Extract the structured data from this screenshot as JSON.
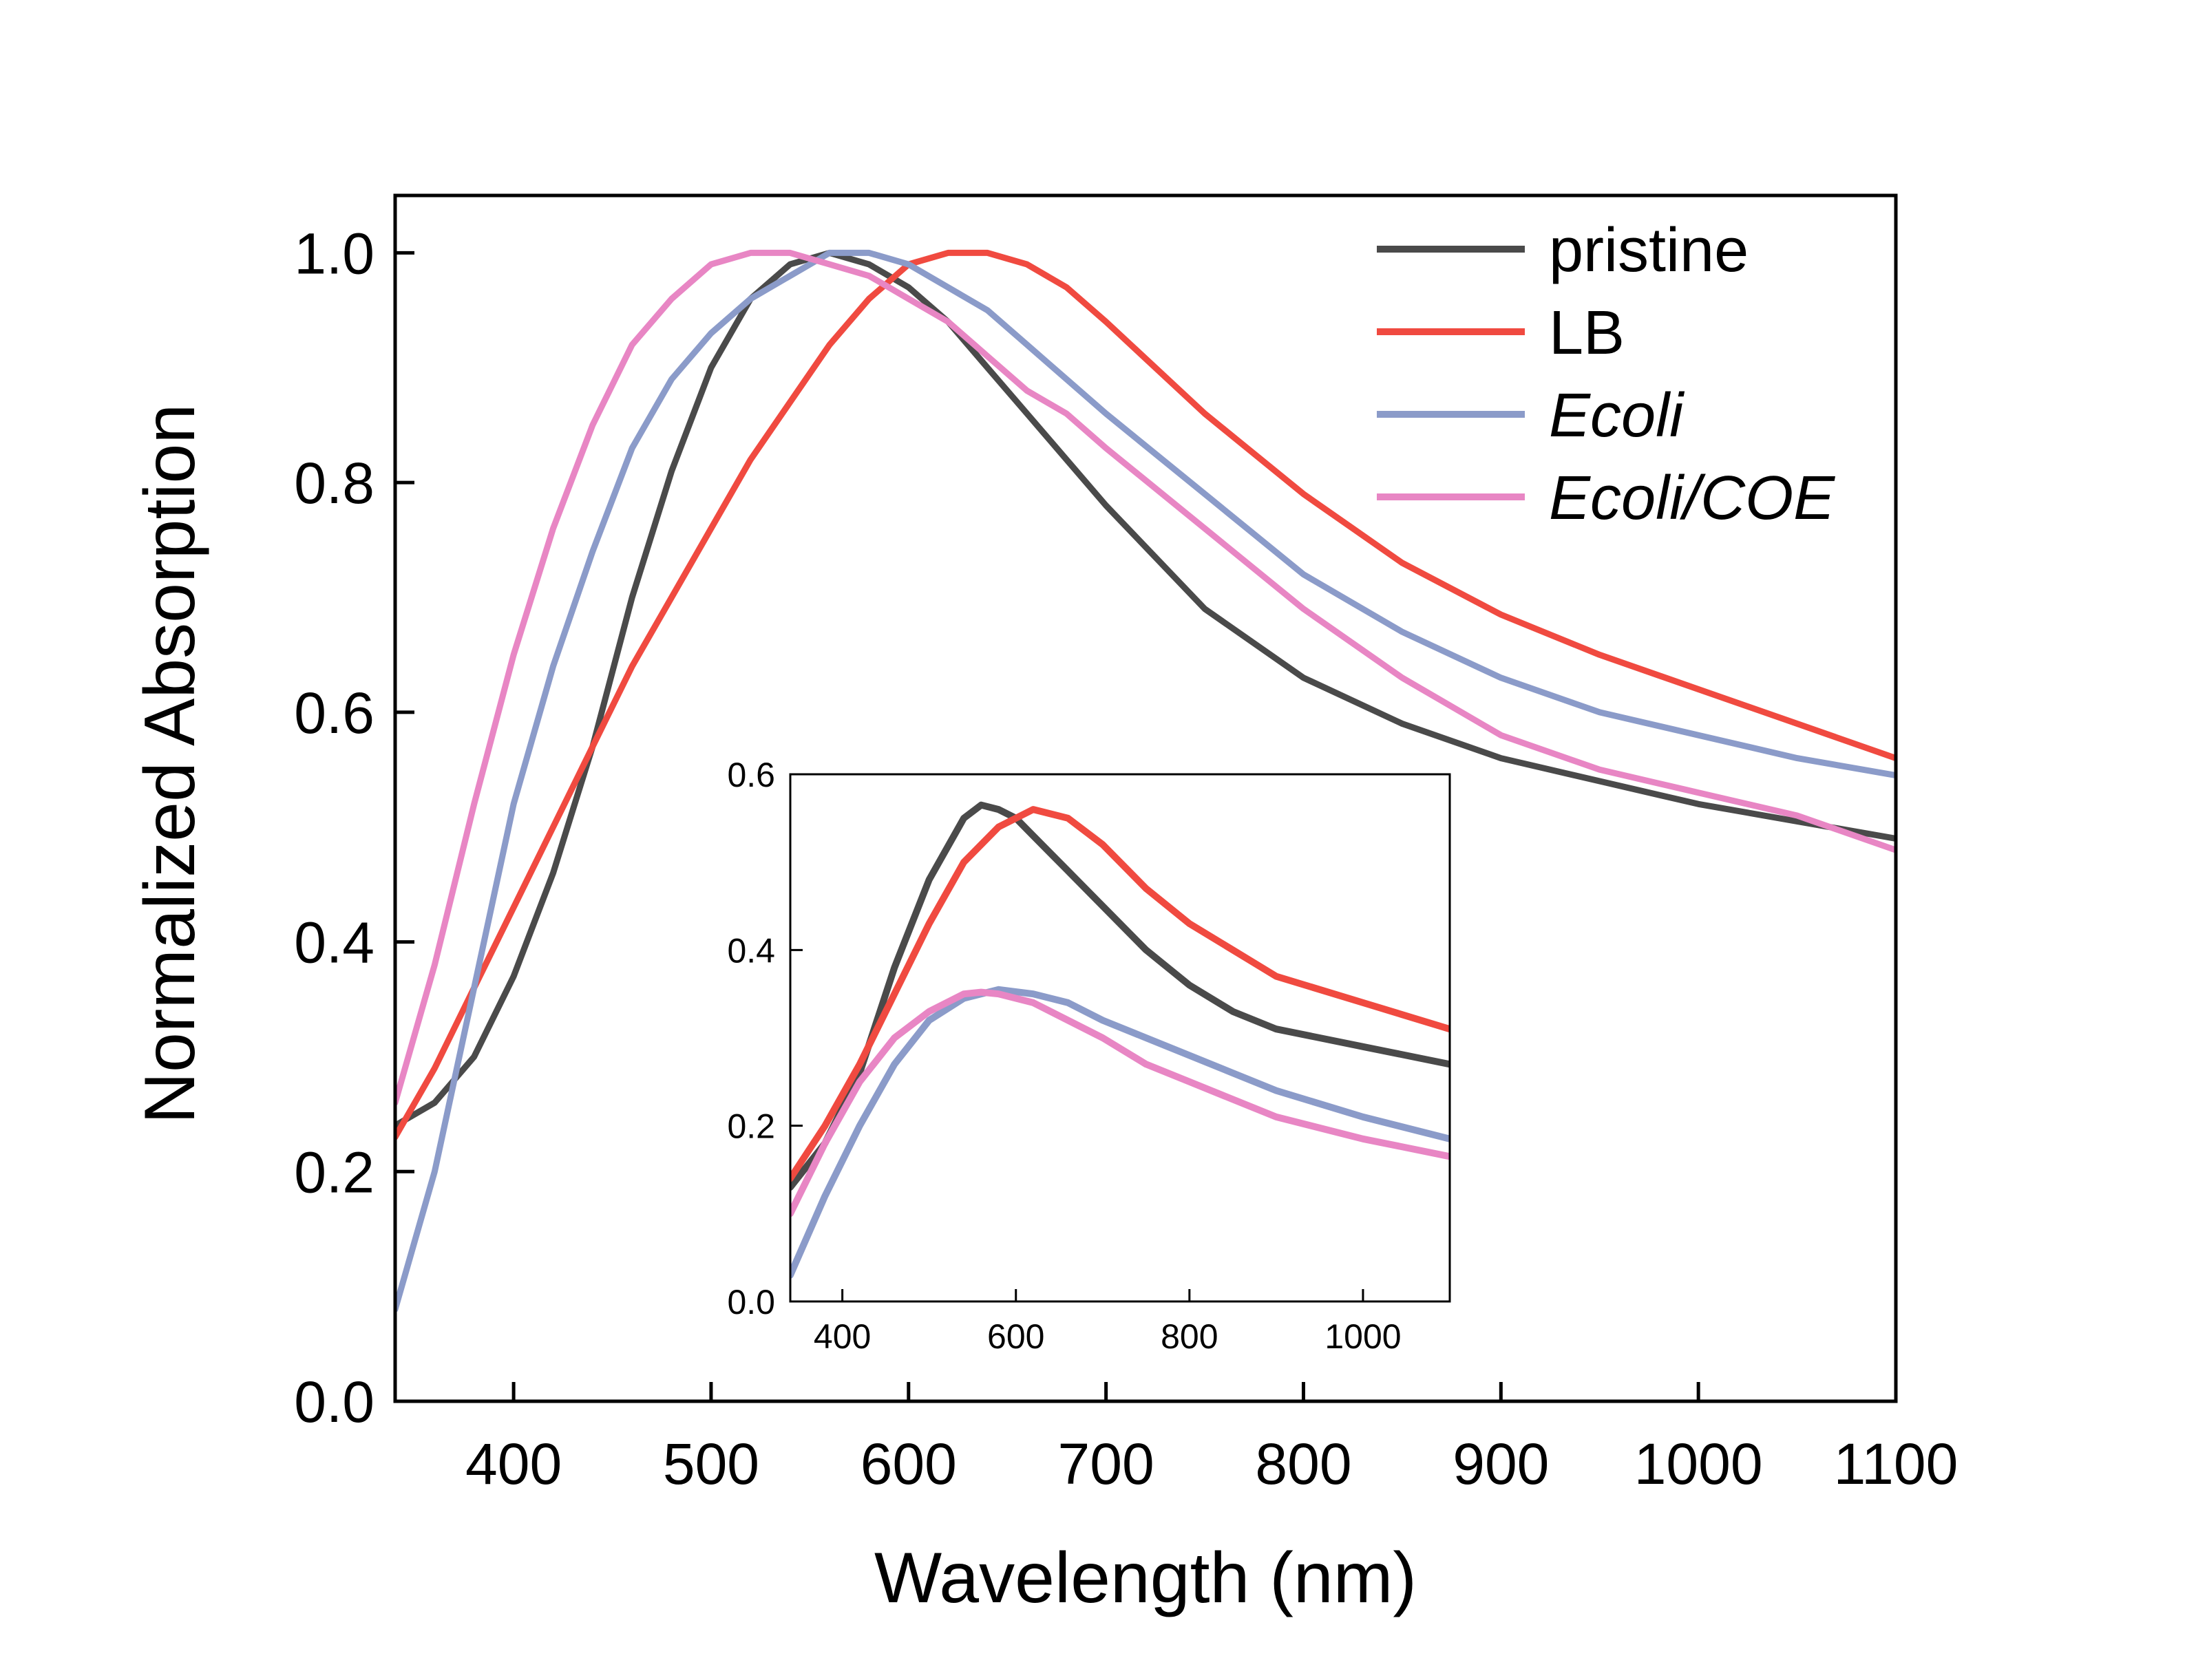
{
  "chart_data": [
    {
      "id": "main",
      "type": "line",
      "title": "",
      "xlabel": "Wavelength (nm)",
      "ylabel": "Normalized Absorption",
      "xlim": [
        340,
        1100
      ],
      "ylim": [
        0.0,
        1.05
      ],
      "xticks": [
        400,
        500,
        600,
        700,
        800,
        900,
        1000,
        1100
      ],
      "xtick_labels": [
        "400",
        "500",
        "600",
        "700",
        "800",
        "900",
        "1000",
        "1100"
      ],
      "yticks": [
        0.0,
        0.2,
        0.4,
        0.6,
        0.8,
        1.0
      ],
      "ytick_labels": [
        "0.0",
        "0.2",
        "0.4",
        "0.6",
        "0.8",
        "1.0"
      ],
      "grid": false,
      "legend_position": "top-right",
      "series": [
        {
          "name": "pristine",
          "italic": false,
          "color": "#4a4a4a",
          "x": [
            340,
            360,
            380,
            400,
            420,
            440,
            460,
            480,
            500,
            520,
            540,
            560,
            580,
            600,
            620,
            640,
            660,
            680,
            700,
            750,
            800,
            850,
            900,
            950,
            1000,
            1050,
            1100
          ],
          "y": [
            0.24,
            0.26,
            0.3,
            0.37,
            0.46,
            0.57,
            0.7,
            0.81,
            0.9,
            0.96,
            0.99,
            1.0,
            0.99,
            0.97,
            0.94,
            0.9,
            0.86,
            0.82,
            0.78,
            0.69,
            0.63,
            0.59,
            0.56,
            0.54,
            0.52,
            0.505,
            0.49
          ]
        },
        {
          "name": "LB",
          "italic": false,
          "color": "#f04a40",
          "x": [
            340,
            360,
            380,
            400,
            420,
            440,
            460,
            480,
            500,
            520,
            540,
            560,
            580,
            600,
            620,
            640,
            660,
            680,
            700,
            750,
            800,
            850,
            900,
            950,
            1000,
            1050,
            1100
          ],
          "y": [
            0.23,
            0.29,
            0.36,
            0.43,
            0.5,
            0.57,
            0.64,
            0.7,
            0.76,
            0.82,
            0.87,
            0.92,
            0.96,
            0.99,
            1.0,
            1.0,
            0.99,
            0.97,
            0.94,
            0.86,
            0.79,
            0.73,
            0.685,
            0.65,
            0.62,
            0.59,
            0.56
          ]
        },
        {
          "name": "Ecoli",
          "italic": true,
          "color": "#8b9bc9",
          "x": [
            340,
            360,
            380,
            400,
            420,
            440,
            460,
            480,
            500,
            520,
            540,
            560,
            580,
            600,
            620,
            640,
            660,
            680,
            700,
            750,
            800,
            850,
            900,
            950,
            1000,
            1050,
            1100
          ],
          "y": [
            0.08,
            0.2,
            0.36,
            0.52,
            0.64,
            0.74,
            0.83,
            0.89,
            0.93,
            0.96,
            0.98,
            1.0,
            1.0,
            0.99,
            0.97,
            0.95,
            0.92,
            0.89,
            0.86,
            0.79,
            0.72,
            0.67,
            0.63,
            0.6,
            0.58,
            0.56,
            0.545
          ]
        },
        {
          "name": "Ecoli/COE",
          "italic": true,
          "color": "#e886c4",
          "x": [
            340,
            360,
            380,
            400,
            420,
            440,
            460,
            480,
            500,
            520,
            540,
            560,
            580,
            600,
            620,
            640,
            660,
            680,
            700,
            750,
            800,
            850,
            900,
            950,
            1000,
            1050,
            1100
          ],
          "y": [
            0.26,
            0.38,
            0.52,
            0.65,
            0.76,
            0.85,
            0.92,
            0.96,
            0.99,
            1.0,
            1.0,
            0.99,
            0.98,
            0.96,
            0.94,
            0.91,
            0.88,
            0.86,
            0.83,
            0.76,
            0.69,
            0.63,
            0.58,
            0.55,
            0.53,
            0.51,
            0.48
          ]
        }
      ]
    },
    {
      "id": "inset",
      "type": "line",
      "title": "",
      "xlabel": "",
      "ylabel": "",
      "xlim": [
        340,
        1100
      ],
      "ylim": [
        0.0,
        0.6
      ],
      "xticks": [
        400,
        600,
        800,
        1000
      ],
      "xtick_labels": [
        "400",
        "600",
        "800",
        "1000"
      ],
      "yticks": [
        0.0,
        0.2,
        0.4,
        0.6
      ],
      "ytick_labels": [
        "0.0",
        "0.2",
        "0.4",
        "0.6"
      ],
      "grid": false,
      "series": [
        {
          "name": "pristine",
          "color": "#4a4a4a",
          "x": [
            340,
            380,
            420,
            460,
            500,
            540,
            560,
            580,
            600,
            620,
            660,
            700,
            750,
            800,
            850,
            900,
            1000,
            1100
          ],
          "y": [
            0.13,
            0.18,
            0.26,
            0.38,
            0.48,
            0.55,
            0.565,
            0.56,
            0.55,
            0.53,
            0.49,
            0.45,
            0.4,
            0.36,
            0.33,
            0.31,
            0.29,
            0.27
          ]
        },
        {
          "name": "LB",
          "color": "#f04a40",
          "x": [
            340,
            380,
            420,
            460,
            500,
            540,
            580,
            620,
            660,
            700,
            750,
            800,
            850,
            900,
            1000,
            1100
          ],
          "y": [
            0.14,
            0.2,
            0.27,
            0.35,
            0.43,
            0.5,
            0.54,
            0.56,
            0.55,
            0.52,
            0.47,
            0.43,
            0.4,
            0.37,
            0.34,
            0.31
          ]
        },
        {
          "name": "Ecoli",
          "color": "#8b9bc9",
          "x": [
            340,
            380,
            420,
            460,
            500,
            540,
            580,
            620,
            660,
            700,
            750,
            800,
            850,
            900,
            1000,
            1100
          ],
          "y": [
            0.03,
            0.12,
            0.2,
            0.27,
            0.32,
            0.345,
            0.355,
            0.35,
            0.34,
            0.32,
            0.3,
            0.28,
            0.26,
            0.24,
            0.21,
            0.185
          ]
        },
        {
          "name": "Ecoli/COE",
          "color": "#e886c4",
          "x": [
            340,
            380,
            420,
            460,
            500,
            540,
            560,
            580,
            620,
            660,
            700,
            750,
            800,
            850,
            900,
            1000,
            1100
          ],
          "y": [
            0.1,
            0.18,
            0.25,
            0.3,
            0.33,
            0.35,
            0.352,
            0.35,
            0.34,
            0.32,
            0.3,
            0.27,
            0.25,
            0.23,
            0.21,
            0.185,
            0.165
          ]
        }
      ]
    }
  ]
}
